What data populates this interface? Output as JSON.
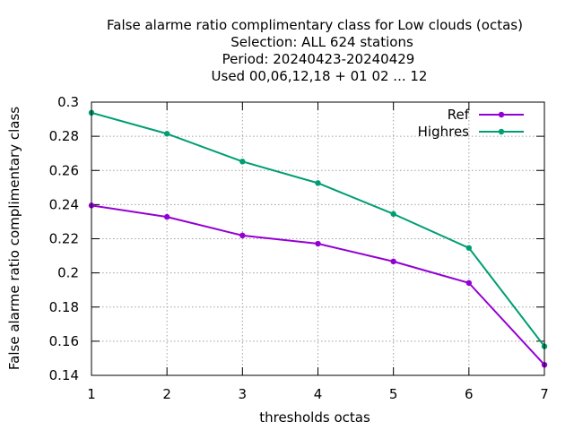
{
  "chart_data": {
    "type": "line",
    "title_lines": [
      "False alarme ratio complimentary class  for Low clouds (octas)",
      "Selection: ALL    624 stations",
      "Period: 20240423-20240429",
      "Used  00,06,12,18 + 01 02 ... 12"
    ],
    "xlabel": "thresholds octas",
    "ylabel": "False alarme ratio complimentary class",
    "x": [
      1,
      2,
      3,
      4,
      5,
      6,
      7
    ],
    "xlim": [
      1,
      7
    ],
    "ylim": [
      0.14,
      0.3
    ],
    "xticks": [
      "1",
      "2",
      "3",
      "4",
      "5",
      "6",
      "7"
    ],
    "yticks": [
      "0.14",
      "0.16",
      "0.18",
      "0.2",
      "0.22",
      "0.24",
      "0.26",
      "0.28",
      "0.3"
    ],
    "grid": true,
    "legend_position": "top-right",
    "series": [
      {
        "name": "Ref",
        "color": "#9400d3",
        "values": [
          0.2395,
          0.2328,
          0.2219,
          0.2171,
          0.2067,
          0.1941,
          0.1462
        ]
      },
      {
        "name": "Highres",
        "color": "#009e73",
        "values": [
          0.2938,
          0.2815,
          0.2652,
          0.2526,
          0.2345,
          0.2146,
          0.157
        ]
      }
    ]
  }
}
